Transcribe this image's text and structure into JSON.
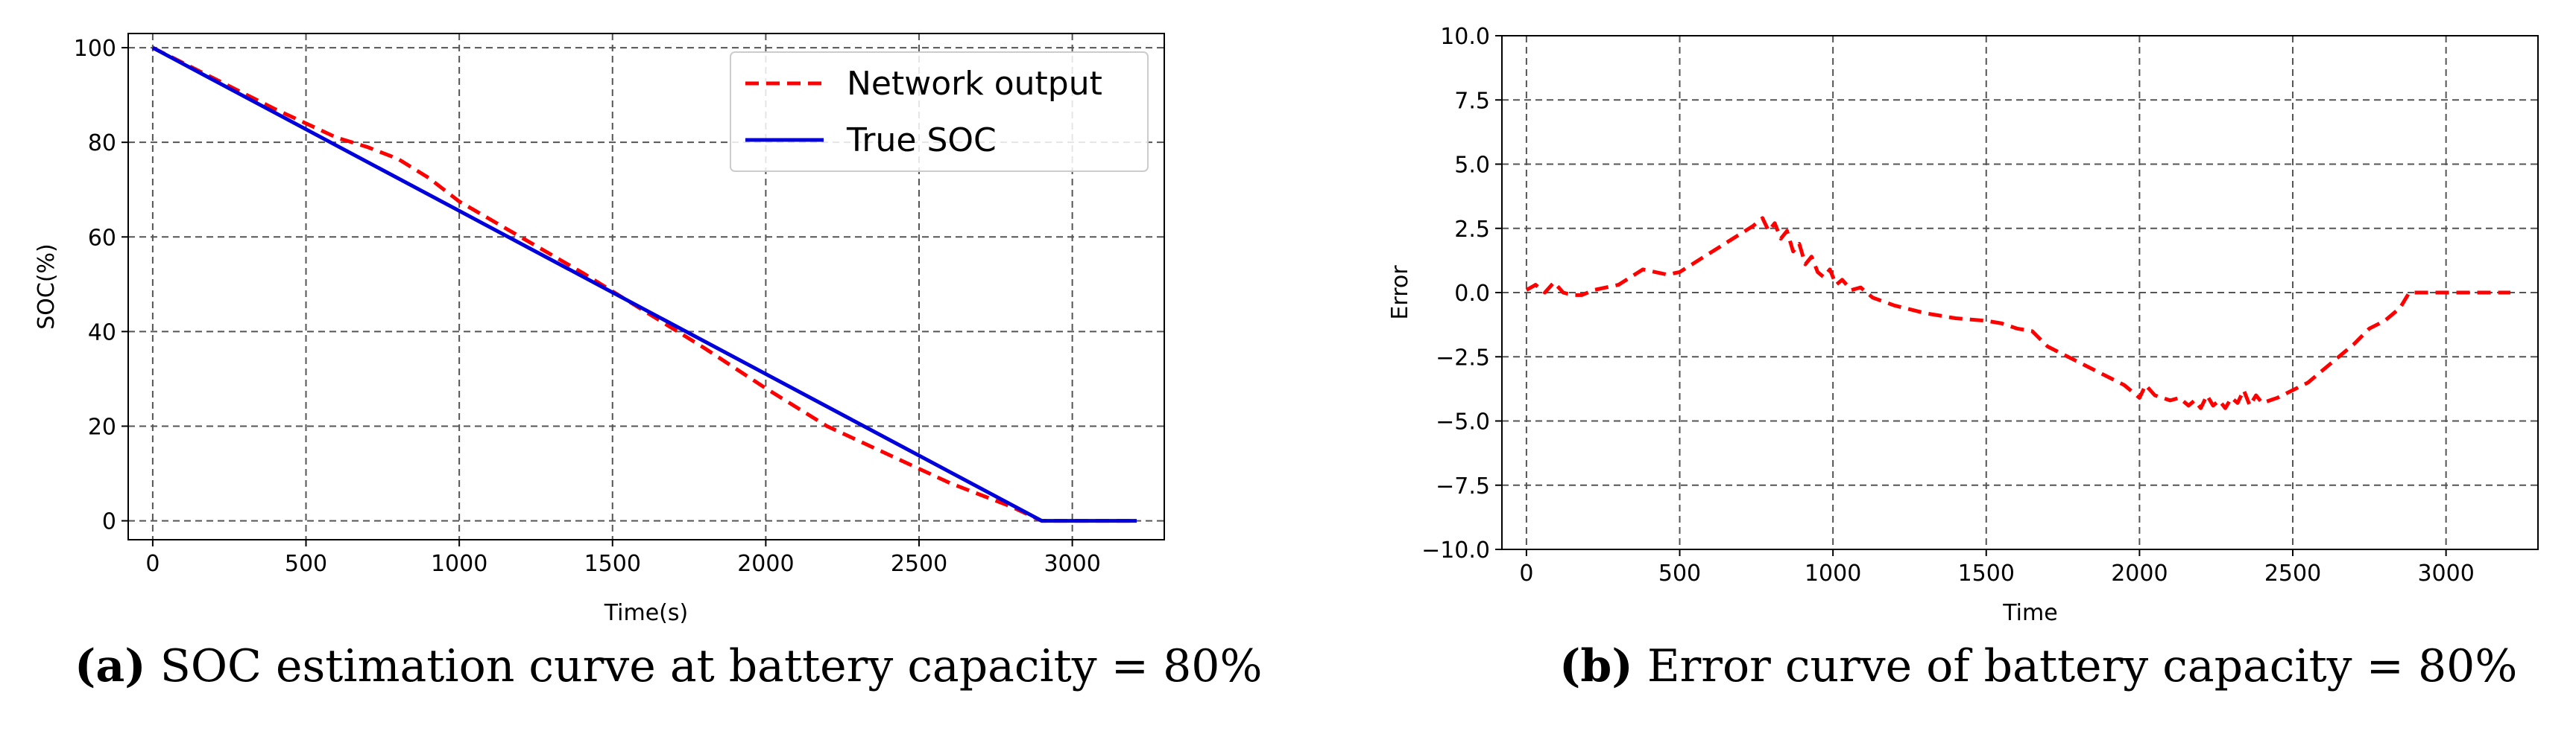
{
  "colors": {
    "network": "#ff0000",
    "true_soc": "#0000dd",
    "grid": "#555555"
  },
  "captions": {
    "a": {
      "tag": "(a)",
      "text": "SOC estimation curve at battery capacity = 80%"
    },
    "b": {
      "tag": "(b)",
      "text": "Error curve of battery capacity = 80%"
    }
  },
  "chart_data": [
    {
      "type": "line",
      "xlabel": "Time(s)",
      "ylabel": "SOC(%)",
      "xlim": [
        -80,
        3300
      ],
      "ylim": [
        -4,
        103
      ],
      "xticks": [
        0,
        500,
        1000,
        1500,
        2000,
        2500,
        3000
      ],
      "yticks": [
        0,
        20,
        40,
        60,
        80,
        100
      ],
      "grid": true,
      "legend_position": "top-right",
      "series": [
        {
          "name": "Network output",
          "style": "dashed",
          "x": [
            0,
            200,
            400,
            600,
            700,
            800,
            900,
            1000,
            1200,
            1400,
            1600,
            1800,
            2000,
            2200,
            2400,
            2600,
            2800,
            2900,
            3000,
            3100,
            3210
          ],
          "y": [
            100,
            93.5,
            87,
            81,
            79,
            76.5,
            72.5,
            67.5,
            60,
            52.5,
            44.5,
            36.5,
            28,
            20,
            14,
            8,
            3,
            0,
            0,
            0,
            0
          ]
        },
        {
          "name": "True SOC",
          "style": "solid",
          "x": [
            0,
            2900,
            3210
          ],
          "y": [
            100,
            0,
            0
          ]
        }
      ]
    },
    {
      "type": "line",
      "xlabel": "Time",
      "ylabel": "Error",
      "xlim": [
        -80,
        3300
      ],
      "ylim": [
        -10,
        10
      ],
      "xticks": [
        0,
        500,
        1000,
        1500,
        2000,
        2500,
        3000
      ],
      "yticks": [
        -10.0,
        -7.5,
        -5.0,
        -2.5,
        0.0,
        2.5,
        5.0,
        7.5,
        10.0
      ],
      "grid": true,
      "series": [
        {
          "name": "Error",
          "style": "dashed",
          "x": [
            0,
            30,
            60,
            90,
            120,
            150,
            180,
            220,
            260,
            300,
            340,
            380,
            420,
            460,
            500,
            540,
            580,
            620,
            660,
            700,
            740,
            770,
            790,
            810,
            830,
            850,
            870,
            890,
            910,
            930,
            950,
            970,
            990,
            1010,
            1030,
            1060,
            1090,
            1130,
            1200,
            1300,
            1400,
            1500,
            1550,
            1600,
            1650,
            1700,
            1750,
            1800,
            1850,
            1900,
            1950,
            2000,
            2020,
            2050,
            2100,
            2130,
            2160,
            2180,
            2200,
            2220,
            2240,
            2260,
            2280,
            2300,
            2320,
            2340,
            2360,
            2380,
            2400,
            2450,
            2500,
            2550,
            2600,
            2650,
            2700,
            2750,
            2800,
            2850,
            2880,
            2900,
            2950,
            3000,
            3100,
            3210
          ],
          "y": [
            0.1,
            0.3,
            0.0,
            0.4,
            0.0,
            -0.1,
            -0.1,
            0.1,
            0.2,
            0.3,
            0.6,
            0.9,
            0.8,
            0.7,
            0.8,
            1.1,
            1.4,
            1.7,
            2.0,
            2.3,
            2.6,
            2.9,
            2.4,
            2.7,
            2.1,
            2.4,
            1.6,
            1.9,
            1.1,
            1.4,
            0.8,
            0.6,
            0.9,
            0.3,
            0.5,
            0.1,
            0.2,
            -0.2,
            -0.5,
            -0.8,
            -1.0,
            -1.1,
            -1.2,
            -1.4,
            -1.5,
            -2.1,
            -2.4,
            -2.7,
            -3.0,
            -3.3,
            -3.6,
            -4.1,
            -3.6,
            -4.0,
            -4.2,
            -4.1,
            -4.4,
            -4.2,
            -4.5,
            -4.0,
            -4.4,
            -4.2,
            -4.5,
            -4.1,
            -4.3,
            -3.8,
            -4.4,
            -4.0,
            -4.3,
            -4.1,
            -3.8,
            -3.5,
            -3.0,
            -2.5,
            -2.0,
            -1.4,
            -1.1,
            -0.6,
            0.0,
            0.0,
            0.0,
            0.0,
            0.0,
            0.0
          ]
        }
      ]
    }
  ]
}
